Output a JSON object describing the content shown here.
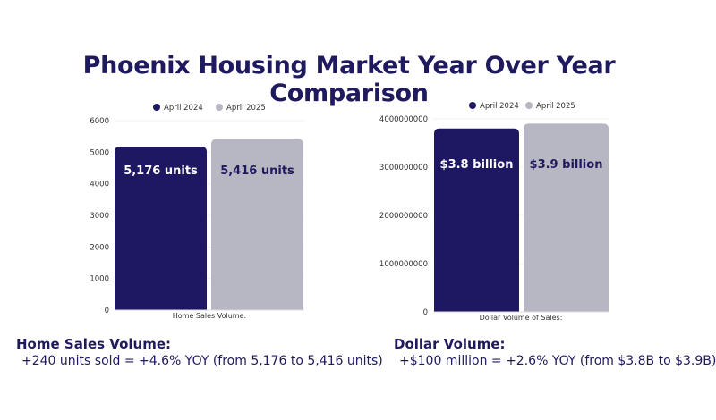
{
  "title": "Phoenix Housing Market Year Over Year Comparison",
  "colors": {
    "april_2024": "#1e1761",
    "april_2025": "#b7b7c4",
    "text": "#1f1a5e"
  },
  "chart_data": [
    {
      "type": "bar",
      "categories": [
        "Home Sales Volume:"
      ],
      "xlabel": "Home Sales Volume:",
      "ylim": [
        0,
        6000
      ],
      "yticks": [
        "0",
        "1000",
        "2000",
        "3000",
        "4000",
        "5000",
        "6000"
      ],
      "legend": "top",
      "grid": true,
      "series": [
        {
          "name": "April 2024",
          "values": [
            5176
          ],
          "label": "5,176 units"
        },
        {
          "name": "April 2025",
          "values": [
            5416
          ],
          "label": "5,416 units"
        }
      ]
    },
    {
      "type": "bar",
      "categories": [
        "Dollar Volume of Sales:"
      ],
      "xlabel": "Dollar Volume of Sales:",
      "ylim": [
        0,
        4000000000
      ],
      "yticks": [
        "0",
        "1000000000",
        "2000000000",
        "3000000000",
        "4000000000"
      ],
      "legend": "top",
      "grid": true,
      "series": [
        {
          "name": "April 2024",
          "values": [
            3800000000
          ],
          "label": "$3.8 billion"
        },
        {
          "name": "April 2025",
          "values": [
            3900000000
          ],
          "label": "$3.9 billion"
        }
      ]
    }
  ],
  "summaries": [
    {
      "heading": "Home Sales Volume:",
      "body": "+240 units sold = +4.6% YOY (from 5,176 to 5,416 units)"
    },
    {
      "heading": "Dollar Volume:",
      "body": "+$100 million = +2.6% YOY (from $3.8B to $3.9B)"
    }
  ]
}
